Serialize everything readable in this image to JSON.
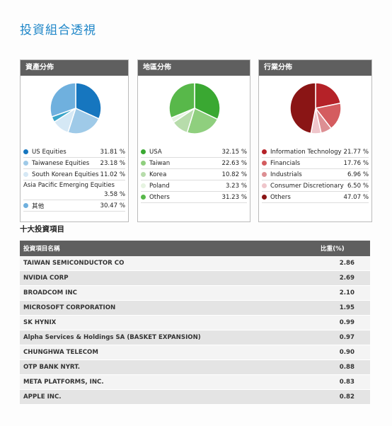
{
  "page": {
    "title": "投資組合透視",
    "top10_title": "十大投資項目"
  },
  "asset": {
    "header": "資產分佈",
    "colors": [
      "#1676bf",
      "#9fcae8",
      "#d5e8f5",
      "#3aa5c9",
      "#6fb0de"
    ],
    "items": [
      {
        "label": "US Equities",
        "value": "31.81 %"
      },
      {
        "label": "Taiwanese Equities",
        "value": "23.18 %"
      },
      {
        "label": "South Korean Equities",
        "value": "11.02 %"
      },
      {
        "label": "Asia Pacific Emerging Equities",
        "value": "3.58 %"
      },
      {
        "label": "其他",
        "value": "30.47 %"
      }
    ],
    "chart_data": {
      "type": "pie",
      "categories": [
        "US Equities",
        "Taiwanese Equities",
        "South Korean Equities",
        "Asia Pacific Emerging Equities",
        "其他"
      ],
      "values": [
        31.81,
        23.18,
        11.02,
        3.58,
        30.47
      ]
    }
  },
  "region": {
    "header": "地區分佈",
    "colors": [
      "#3aa832",
      "#8fcf7e",
      "#b7dcab",
      "#e6f3e1",
      "#58b84a"
    ],
    "items": [
      {
        "label": "USA",
        "value": "32.15 %"
      },
      {
        "label": "Taiwan",
        "value": "22.63 %"
      },
      {
        "label": "Korea",
        "value": "10.82 %"
      },
      {
        "label": "Poland",
        "value": "3.23 %"
      },
      {
        "label": "Others",
        "value": "31.23 %"
      }
    ],
    "chart_data": {
      "type": "pie",
      "categories": [
        "USA",
        "Taiwan",
        "Korea",
        "Poland",
        "Others"
      ],
      "values": [
        32.15,
        22.63,
        10.82,
        3.23,
        31.23
      ]
    }
  },
  "industry": {
    "header": "行業分佈",
    "colors": [
      "#b52228",
      "#d45c5f",
      "#dd8f93",
      "#efc6cb",
      "#8a1515"
    ],
    "items": [
      {
        "label": "Information Technology",
        "value": "21.77 %"
      },
      {
        "label": "Financials",
        "value": "17.76 %"
      },
      {
        "label": "Industrials",
        "value": "6.96 %"
      },
      {
        "label": "Consumer Discretionary",
        "value": "6.50 %"
      },
      {
        "label": "Others",
        "value": "47.07 %"
      }
    ],
    "chart_data": {
      "type": "pie",
      "categories": [
        "Information Technology",
        "Financials",
        "Industrials",
        "Consumer Discretionary",
        "Others"
      ],
      "values": [
        21.77,
        17.76,
        6.96,
        6.5,
        47.07
      ]
    }
  },
  "holdings": {
    "col_name": "投資項目名稱",
    "col_weight": "比重(%)",
    "rows": [
      {
        "name": "TAIWAN SEMICONDUCTOR CO",
        "weight": "2.86"
      },
      {
        "name": "NVIDIA CORP",
        "weight": "2.69"
      },
      {
        "name": "BROADCOM INC",
        "weight": "2.10"
      },
      {
        "name": "MICROSOFT CORPORATION",
        "weight": "1.95"
      },
      {
        "name": "SK HYNIX",
        "weight": "0.99"
      },
      {
        "name": "Alpha Services & Holdings SA (BASKET EXPANSION)",
        "weight": "0.97"
      },
      {
        "name": "CHUNGHWA TELECOM",
        "weight": "0.90"
      },
      {
        "name": "OTP BANK NYRT.",
        "weight": "0.88"
      },
      {
        "name": "META PLATFORMS, INC.",
        "weight": "0.83"
      },
      {
        "name": "APPLE INC.",
        "weight": "0.82"
      }
    ]
  }
}
